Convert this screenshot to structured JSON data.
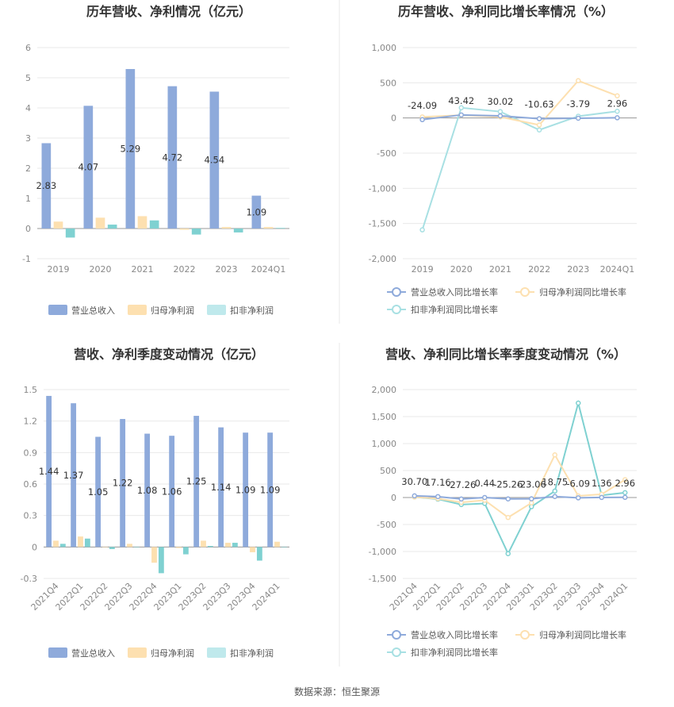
{
  "source_label": "数据来源：恒生聚源",
  "chart_data": [
    {
      "type": "bar",
      "title": "历年营收、净利情况（亿元）",
      "categories": [
        "2019",
        "2020",
        "2021",
        "2022",
        "2023",
        "2024Q1"
      ],
      "yticks": [
        "6",
        "5",
        "4",
        "3",
        "2",
        "1",
        "0",
        "-1"
      ],
      "ylim": [
        -1,
        6
      ],
      "legend_position": "bottom",
      "series": [
        {
          "name": "营业总收入",
          "color": "#8eaadb",
          "values": [
            2.83,
            4.07,
            5.29,
            4.72,
            4.54,
            1.09
          ],
          "labels": [
            "2.83",
            "4.07",
            "5.29",
            "4.72",
            "4.54",
            "1.09"
          ]
        },
        {
          "name": "归母净利润",
          "color": "#fde0b0",
          "values": [
            0.23,
            0.36,
            0.41,
            -0.04,
            0.05,
            0.05
          ]
        },
        {
          "name": "扣非净利润",
          "color": "#7fd1d1",
          "values": [
            -0.3,
            0.13,
            0.27,
            -0.2,
            -0.13,
            0.02
          ]
        }
      ]
    },
    {
      "type": "line",
      "title": "历年营收、净利同比增长率情况（%）",
      "categories": [
        "2019",
        "2020",
        "2021",
        "2022",
        "2023",
        "2024Q1"
      ],
      "yticks": [
        "1,000",
        "500",
        "0",
        "-500",
        "-1,000",
        "-1,500",
        "-2,000"
      ],
      "ylim": [
        -2000,
        1000
      ],
      "legend_position": "bottom",
      "series": [
        {
          "name": "营业总收入同比增长率",
          "color": "#8eaadb",
          "values": [
            -24.09,
            43.42,
            30.02,
            -10.63,
            -3.79,
            2.96
          ],
          "labels": [
            "-24.09",
            "43.42",
            "30.02",
            "-10.63",
            "-3.79",
            "2.96"
          ]
        },
        {
          "name": "归母净利润同比增长率",
          "color": "#fde0b0",
          "values": [
            15,
            40,
            15,
            -100,
            530,
            315
          ]
        },
        {
          "name": "扣非净利润同比增长率",
          "color": "#a8e0e3",
          "values": [
            -1590,
            145,
            90,
            -170,
            25,
            95
          ]
        }
      ]
    },
    {
      "type": "bar",
      "title": "营收、净利季度变动情况（亿元）",
      "categories": [
        "2021Q4",
        "2022Q1",
        "2022Q2",
        "2022Q3",
        "2022Q4",
        "2023Q1",
        "2023Q2",
        "2023Q3",
        "2023Q4",
        "2024Q1"
      ],
      "yticks": [
        "1.5",
        "1.2",
        "0.9",
        "0.6",
        "0.3",
        "0",
        "-0.3"
      ],
      "ylim": [
        -0.3,
        1.5
      ],
      "legend_position": "bottom",
      "series": [
        {
          "name": "营业总收入",
          "color": "#8eaadb",
          "values": [
            1.44,
            1.37,
            1.05,
            1.22,
            1.08,
            1.06,
            1.25,
            1.14,
            1.09,
            1.09
          ],
          "labels": [
            "1.44",
            "1.37",
            "1.05",
            "1.22",
            "1.08",
            "1.06",
            "1.25",
            "1.14",
            "1.09",
            "1.09"
          ]
        },
        {
          "name": "归母净利润",
          "color": "#fde0b0",
          "values": [
            0.06,
            0.1,
            0.0,
            0.03,
            -0.15,
            -0.01,
            0.06,
            0.04,
            -0.05,
            0.05
          ]
        },
        {
          "name": "扣非净利润",
          "color": "#7fd1d1",
          "values": [
            0.03,
            0.08,
            -0.02,
            0.0,
            -0.25,
            -0.07,
            0.01,
            0.04,
            -0.13,
            0.0
          ]
        }
      ]
    },
    {
      "type": "line",
      "title": "营收、净利同比增长率季度变动情况（%）",
      "categories": [
        "2021Q4",
        "2022Q1",
        "2022Q2",
        "2022Q3",
        "2022Q4",
        "2023Q1",
        "2023Q2",
        "2023Q3",
        "2023Q4",
        "2024Q1"
      ],
      "yticks": [
        "2,000",
        "1,500",
        "1,000",
        "500",
        "0",
        "-500",
        "-1,000",
        "-1,500"
      ],
      "ylim": [
        -1500,
        2000
      ],
      "legend_position": "bottom",
      "series": [
        {
          "name": "营业总收入同比增长率",
          "color": "#8eaadb",
          "values": [
            30.7,
            17.16,
            -27.26,
            0.44,
            -25.26,
            -23.06,
            18.75,
            -6.09,
            1.36,
            2.96
          ],
          "labels": [
            "30.70",
            "17.16",
            "-27.26",
            "0.44",
            "-25.26",
            "-23.06",
            "18.75",
            "-6.09",
            "1.36",
            "2.96"
          ]
        },
        {
          "name": "归母净利润同比增长率",
          "color": "#fde0b0",
          "values": [
            10,
            -20,
            -90,
            -50,
            -370,
            -100,
            790,
            30,
            60,
            330
          ]
        },
        {
          "name": "扣非净利润同比增长率",
          "color": "#7fd1d1",
          "values": [
            10,
            -30,
            -130,
            -110,
            -1040,
            -170,
            120,
            1750,
            40,
            90
          ]
        }
      ]
    }
  ]
}
